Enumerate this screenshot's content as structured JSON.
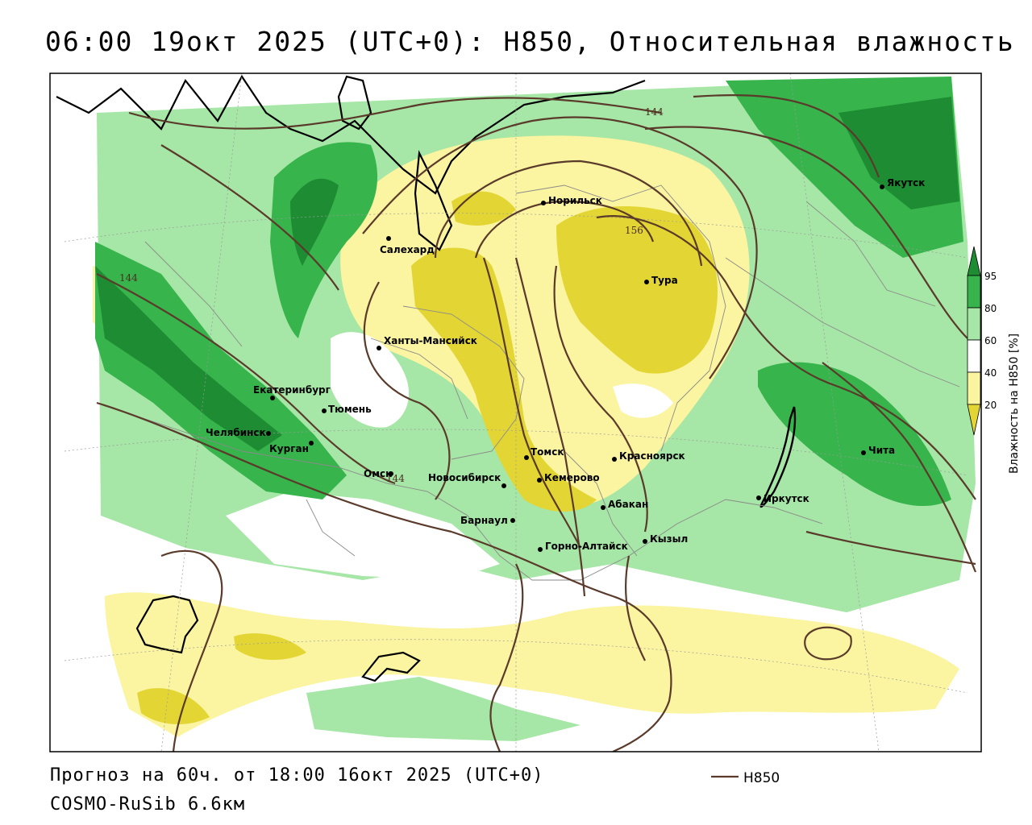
{
  "title": "06:00 19окт 2025 (UTC+0): H850, Относительная влажность",
  "forecast": "Прогноз на 60ч. от 18:00 16окт 2025 (UTC+0)",
  "model": "COSMO-RuSib 6.6км",
  "legend": {
    "line_label": "H850",
    "line_color": "#5a3a2a"
  },
  "colorbar": {
    "title": "Влажность на H850 [%]",
    "ticks": [
      "95",
      "80",
      "60",
      "40",
      "20"
    ],
    "colors": {
      "gt95": "#1e8c32",
      "80_95": "#37b44b",
      "60_80": "#a6e6a6",
      "40_60": "#ffffff",
      "20_40": "#fbf4a0",
      "lt20": "#e3d634"
    }
  },
  "cities": [
    {
      "name": "Якутск"
    },
    {
      "name": "Норильск"
    },
    {
      "name": "Салехард"
    },
    {
      "name": "Тура"
    },
    {
      "name": "Ханты-Мансийск"
    },
    {
      "name": "Екатеринбург"
    },
    {
      "name": "Тюмень"
    },
    {
      "name": "Челябинск"
    },
    {
      "name": "Курган"
    },
    {
      "name": "Омск"
    },
    {
      "name": "Новосибирск"
    },
    {
      "name": "Томск"
    },
    {
      "name": "Кемерово"
    },
    {
      "name": "Красноярск"
    },
    {
      "name": "Абакан"
    },
    {
      "name": "Барнаул"
    },
    {
      "name": "Горно-Алтайск"
    },
    {
      "name": "Кызыл"
    },
    {
      "name": "Иркутск"
    },
    {
      "name": "Чита"
    }
  ],
  "contour_labels": [
    "144",
    "156",
    "144",
    "144"
  ]
}
